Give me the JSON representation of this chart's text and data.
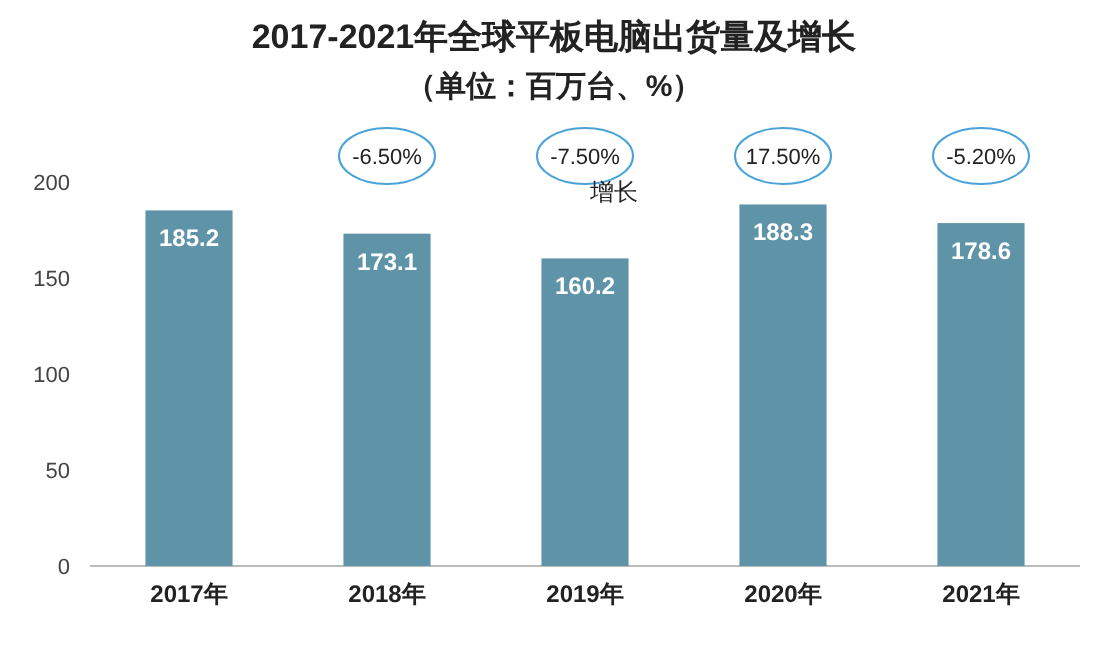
{
  "chart_data": {
    "type": "bar",
    "title": "2017-2021年全球平板电脑出货量及增长",
    "subtitle": "（单位：百万台、%）",
    "categories": [
      "2017年",
      "2018年",
      "2019年",
      "2020年",
      "2021年"
    ],
    "values": [
      185.2,
      173.1,
      160.2,
      188.3,
      178.6
    ],
    "color": "#5e93a8",
    "ylim": [
      0,
      200
    ],
    "yticks": [
      0,
      50,
      100,
      150,
      200
    ],
    "data_labels": true,
    "grid": false,
    "annotations": [
      "-6.50%",
      "-7.50%",
      "17.50%",
      "-5.20%",
      "增长"
    ]
  }
}
